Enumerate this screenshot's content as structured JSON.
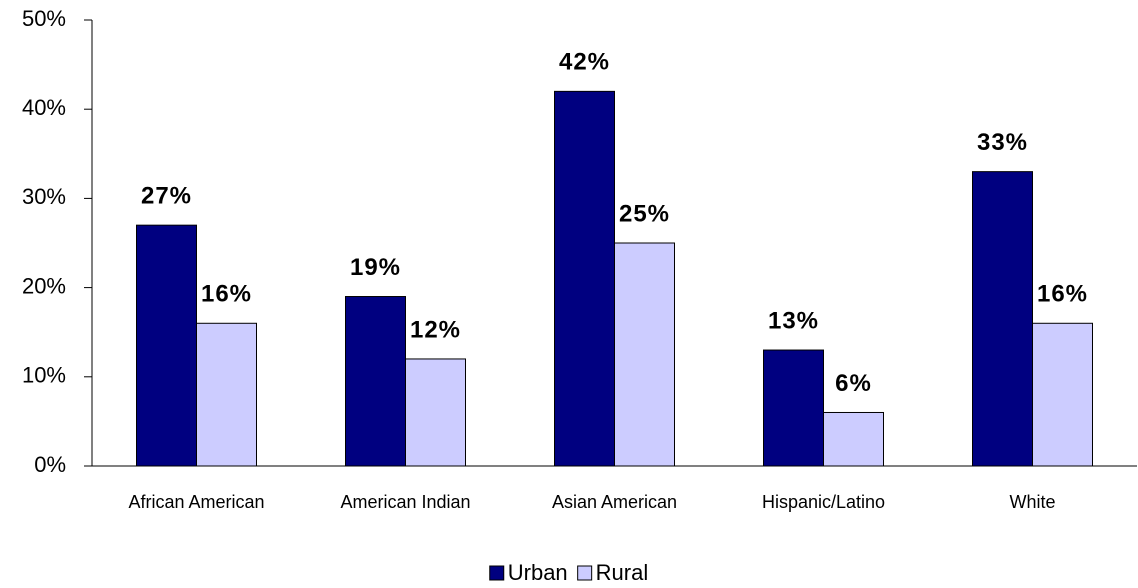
{
  "chart_data": {
    "type": "bar",
    "categories": [
      "African American",
      "American Indian",
      "Asian American",
      "Hispanic/Latino",
      "White"
    ],
    "series": [
      {
        "name": "Urban",
        "color": "#000080",
        "values": [
          27,
          19,
          42,
          13,
          33
        ],
        "value_labels": [
          "27%",
          "19%",
          "42%",
          "13%",
          "33%"
        ]
      },
      {
        "name": "Rural",
        "color": "#ccccff",
        "values": [
          16,
          12,
          25,
          6,
          16
        ],
        "value_labels": [
          "16%",
          "12%",
          "25%",
          "6%",
          "16%"
        ]
      }
    ],
    "ylim": [
      0,
      50
    ],
    "yticks": [
      {
        "value": 0,
        "label": "0%"
      },
      {
        "value": 10,
        "label": "10%"
      },
      {
        "value": 20,
        "label": "20%"
      },
      {
        "value": 30,
        "label": "30%"
      },
      {
        "value": 40,
        "label": "40%"
      },
      {
        "value": 50,
        "label": "50%"
      }
    ],
    "legend": "bottom"
  }
}
